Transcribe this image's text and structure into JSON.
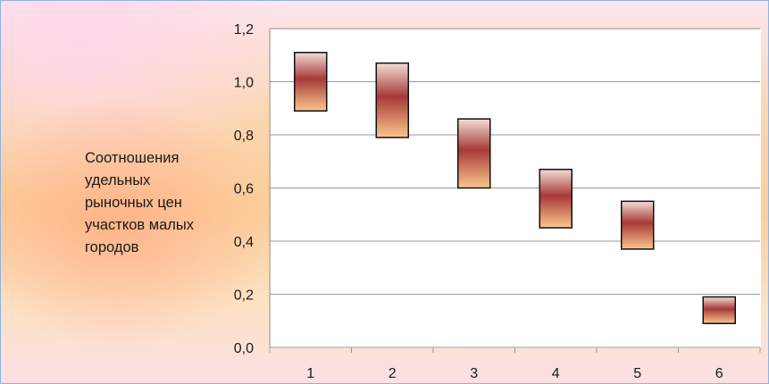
{
  "chart_data": {
    "type": "floating-bar",
    "categories": [
      "1",
      "2",
      "3",
      "4",
      "5",
      "6"
    ],
    "ranges": [
      {
        "low": 0.89,
        "high": 1.11
      },
      {
        "low": 0.79,
        "high": 1.07
      },
      {
        "low": 0.6,
        "high": 0.86
      },
      {
        "low": 0.45,
        "high": 0.67
      },
      {
        "low": 0.37,
        "high": 0.55
      },
      {
        "low": 0.09,
        "high": 0.19
      }
    ],
    "ylabel": "Соотношения\nудельных\nрыночных цен\nучастков малых\nгородов",
    "ylim": [
      0,
      1.2
    ],
    "yticks": [
      "0,0",
      "0,2",
      "0,4",
      "0,6",
      "0,8",
      "1,0",
      "1,2"
    ],
    "grid": true,
    "colors": {
      "bar_top": "#f3ddd6",
      "bar_mid": "#a63a38",
      "bar_bottom": "#fcc58c",
      "bar_border": "#111111",
      "gridline": "#9a9a9a"
    }
  }
}
